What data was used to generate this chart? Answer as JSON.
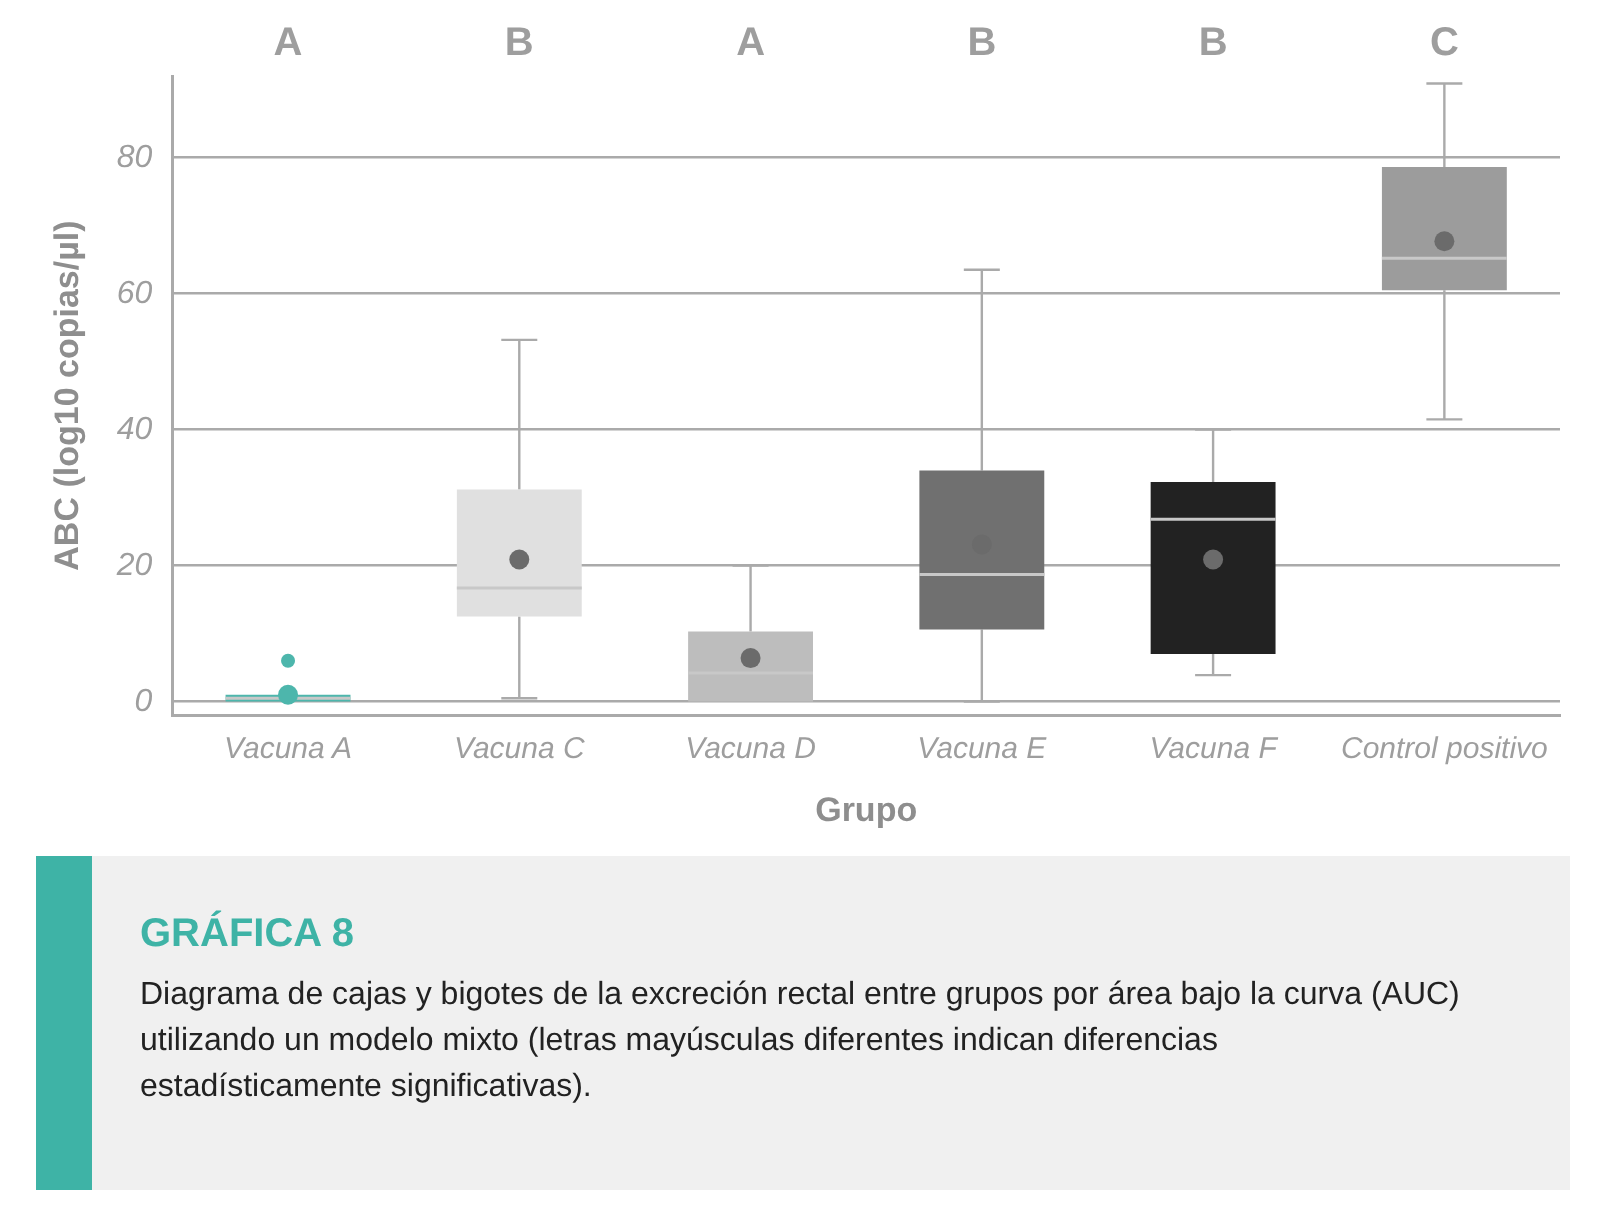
{
  "chart_data": {
    "type": "box",
    "title": "GRÁFICA 8",
    "subtitle": "Diagrama de cajas y bigotes de la excreción rectal entre grupos por área bajo la curva (AUC) utilizando un modelo mixto (letras mayúsculas diferentes indican diferencias estadísticamente significativas).",
    "xlabel": "Grupo",
    "ylabel": "ABC (log10 copias/µl)",
    "categories": [
      "Vacuna A",
      "Vacuna C",
      "Vacuna D",
      "Vacuna E",
      "Vacuna F",
      "Control positivo"
    ],
    "boxes": [
      {
        "low": 0,
        "q1": 0,
        "median": 0.5,
        "q3": 1,
        "high": 1,
        "mean": 1,
        "outliers": [
          6
        ]
      },
      {
        "low": 0.5,
        "q1": 12.5,
        "median": 16.7,
        "q3": 31.2,
        "high": 53.2,
        "mean": 20.9
      },
      {
        "low": 0,
        "q1": 0,
        "median": 4.2,
        "q3": 10.3,
        "high": 20,
        "mean": 6.4
      },
      {
        "low": 0,
        "q1": 10.6,
        "median": 18.7,
        "q3": 34,
        "high": 63.5,
        "mean": 23.1
      },
      {
        "low": 3.9,
        "q1": 7,
        "median": 26.8,
        "q3": 32.3,
        "high": 40,
        "mean": 20.9
      },
      {
        "low": 41.5,
        "q1": 60.5,
        "median": 65.2,
        "q3": 78.6,
        "high": 90.9,
        "mean": 67.7
      }
    ],
    "colors": [
      "#4db6ac",
      "#e0e0e0",
      "#bdbdbd",
      "#707070",
      "#222222",
      "#9c9c9c"
    ],
    "ylim": [
      -2,
      92
    ],
    "yticks": [
      0,
      20,
      40,
      60,
      80
    ],
    "grid": "y",
    "marker": "circle",
    "annotations": [
      "A",
      "B",
      "A",
      "B",
      "B",
      "C"
    ]
  }
}
